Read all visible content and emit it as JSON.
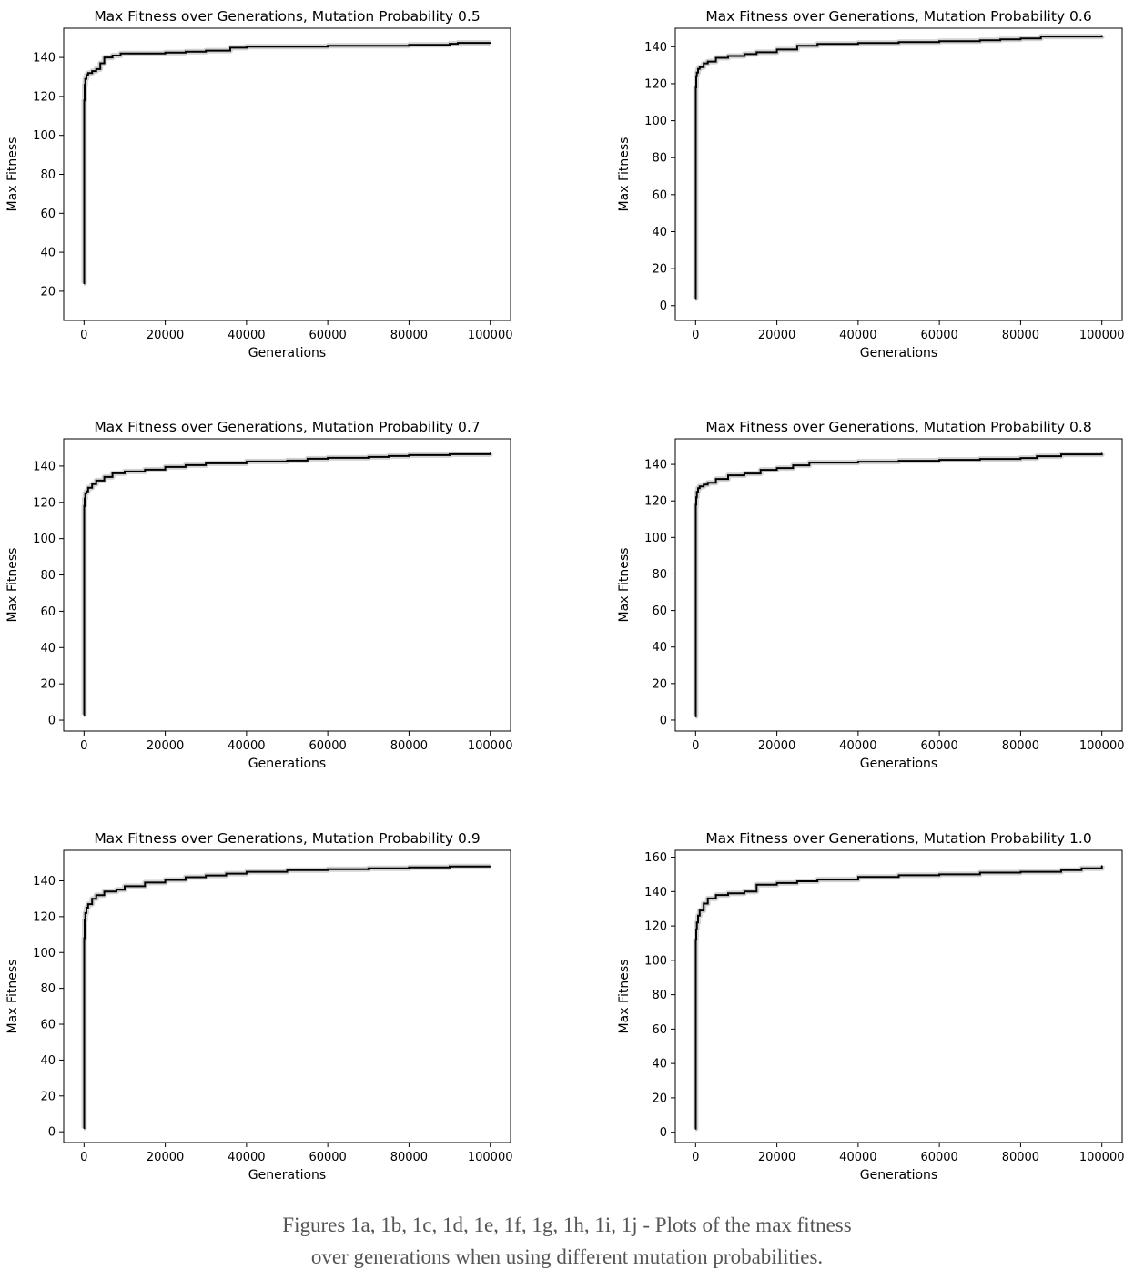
{
  "figure": {
    "caption_line1": "Figures 1a, 1b, 1c, 1d, 1e, 1f, 1g, 1h, 1i, 1j - Plots of the max fitness",
    "caption_line2": "over generations when using different mutation probabilities."
  },
  "chart_data": [
    {
      "type": "line",
      "title": "Max Fitness over Generations, Mutation Probability 0.5",
      "xlabel": "Generations",
      "ylabel": "Max Fitness",
      "xlim": [
        -5000,
        105000
      ],
      "ylim": [
        5,
        155
      ],
      "xticks": [
        0,
        20000,
        40000,
        60000,
        80000,
        100000
      ],
      "yticks": [
        20,
        40,
        60,
        80,
        100,
        120,
        140
      ],
      "grid": false,
      "series": [
        {
          "x": [
            0,
            50,
            150,
            300,
            600,
            1000,
            2000,
            3000,
            4000,
            5000,
            7000,
            9000,
            12000,
            15000,
            20000,
            25000,
            30000,
            34000,
            36000,
            40000,
            50000,
            60000,
            70000,
            80000,
            90000,
            92000,
            100000
          ],
          "y": [
            24,
            118,
            126,
            129,
            131,
            132,
            133,
            134,
            137,
            140,
            141,
            142,
            142,
            142,
            142.5,
            143,
            143.5,
            143.5,
            145,
            145.5,
            145.5,
            146,
            146,
            146.5,
            147,
            147.5,
            147.5
          ]
        }
      ]
    },
    {
      "type": "line",
      "title": "Max Fitness over Generations, Mutation Probability 0.6",
      "xlabel": "Generations",
      "ylabel": "Max Fitness",
      "xlim": [
        -5000,
        105000
      ],
      "ylim": [
        -8,
        150
      ],
      "xticks": [
        0,
        20000,
        40000,
        60000,
        80000,
        100000
      ],
      "yticks": [
        0,
        20,
        40,
        60,
        80,
        100,
        120,
        140
      ],
      "grid": false,
      "series": [
        {
          "x": [
            0,
            50,
            150,
            300,
            600,
            1000,
            2000,
            3000,
            5000,
            8000,
            12000,
            15000,
            20000,
            25000,
            30000,
            40000,
            50000,
            60000,
            70000,
            75000,
            80000,
            85000,
            100000
          ],
          "y": [
            4,
            118,
            124,
            126,
            128,
            129,
            131,
            132,
            134,
            135,
            136,
            137,
            138.5,
            140.5,
            141.5,
            142,
            142.5,
            143,
            143.5,
            144,
            144.5,
            145.5,
            146
          ]
        }
      ]
    },
    {
      "type": "line",
      "title": "Max Fitness over Generations, Mutation Probability 0.7",
      "xlabel": "Generations",
      "ylabel": "Max Fitness",
      "xlim": [
        -5000,
        105000
      ],
      "ylim": [
        -6,
        155
      ],
      "xticks": [
        0,
        20000,
        40000,
        60000,
        80000,
        100000
      ],
      "yticks": [
        0,
        20,
        40,
        60,
        80,
        100,
        120,
        140
      ],
      "grid": false,
      "series": [
        {
          "x": [
            0,
            50,
            150,
            300,
            600,
            1000,
            2000,
            3000,
            5000,
            7000,
            10000,
            15000,
            20000,
            25000,
            30000,
            40000,
            50000,
            55000,
            60000,
            70000,
            75000,
            80000,
            90000,
            100000
          ],
          "y": [
            3,
            118,
            122,
            125,
            126,
            128,
            130,
            132,
            134,
            136,
            137,
            138,
            139.5,
            140.5,
            141.5,
            142.5,
            143,
            144,
            144.5,
            145,
            145.5,
            146,
            146.5,
            147
          ]
        }
      ]
    },
    {
      "type": "line",
      "title": "Max Fitness over Generations, Mutation Probability 0.8",
      "xlabel": "Generations",
      "ylabel": "Max Fitness",
      "xlim": [
        -5000,
        105000
      ],
      "ylim": [
        -6,
        154
      ],
      "xticks": [
        0,
        20000,
        40000,
        60000,
        80000,
        100000
      ],
      "yticks": [
        0,
        20,
        40,
        60,
        80,
        100,
        120,
        140
      ],
      "grid": false,
      "series": [
        {
          "x": [
            0,
            50,
            150,
            300,
            600,
            1000,
            2000,
            3000,
            5000,
            8000,
            12000,
            16000,
            20000,
            24000,
            28000,
            40000,
            50000,
            60000,
            70000,
            80000,
            84000,
            90000,
            100000
          ],
          "y": [
            2,
            118,
            122,
            125,
            127,
            128,
            129,
            130,
            132,
            134,
            135,
            137,
            138,
            139.5,
            141,
            141.5,
            142,
            142.5,
            143,
            143.5,
            144.5,
            145.5,
            146
          ]
        }
      ]
    },
    {
      "type": "line",
      "title": "Max Fitness over Generations, Mutation Probability 0.9",
      "xlabel": "Generations",
      "ylabel": "Max Fitness",
      "xlim": [
        -5000,
        105000
      ],
      "ylim": [
        -6,
        157
      ],
      "xticks": [
        0,
        20000,
        40000,
        60000,
        80000,
        100000
      ],
      "yticks": [
        0,
        20,
        40,
        60,
        80,
        100,
        120,
        140
      ],
      "grid": false,
      "series": [
        {
          "x": [
            0,
            50,
            150,
            300,
            600,
            1000,
            2000,
            3000,
            5000,
            8000,
            10000,
            15000,
            20000,
            25000,
            30000,
            35000,
            40000,
            50000,
            60000,
            70000,
            80000,
            90000,
            100000
          ],
          "y": [
            2,
            108,
            118,
            122,
            125,
            127,
            130,
            132,
            134,
            135,
            137,
            139,
            140.5,
            142,
            143,
            144,
            145,
            146,
            146.5,
            147,
            147.5,
            148,
            148
          ]
        }
      ]
    },
    {
      "type": "line",
      "title": "Max Fitness over Generations, Mutation Probability 1.0",
      "xlabel": "Generations",
      "ylabel": "Max Fitness",
      "xlim": [
        -5000,
        105000
      ],
      "ylim": [
        -6,
        164
      ],
      "xticks": [
        0,
        20000,
        40000,
        60000,
        80000,
        100000
      ],
      "yticks": [
        0,
        20,
        40,
        60,
        80,
        100,
        120,
        140,
        160
      ],
      "grid": false,
      "series": [
        {
          "x": [
            0,
            50,
            150,
            300,
            600,
            1000,
            2000,
            3000,
            5000,
            8000,
            12000,
            15000,
            20000,
            25000,
            30000,
            40000,
            50000,
            60000,
            70000,
            80000,
            90000,
            95000,
            100000
          ],
          "y": [
            2,
            112,
            118,
            122,
            126,
            129,
            133,
            136,
            138,
            139,
            140,
            144,
            145,
            146,
            147,
            148.5,
            149.5,
            150,
            151,
            151.5,
            152.5,
            153.5,
            155
          ]
        }
      ]
    }
  ]
}
